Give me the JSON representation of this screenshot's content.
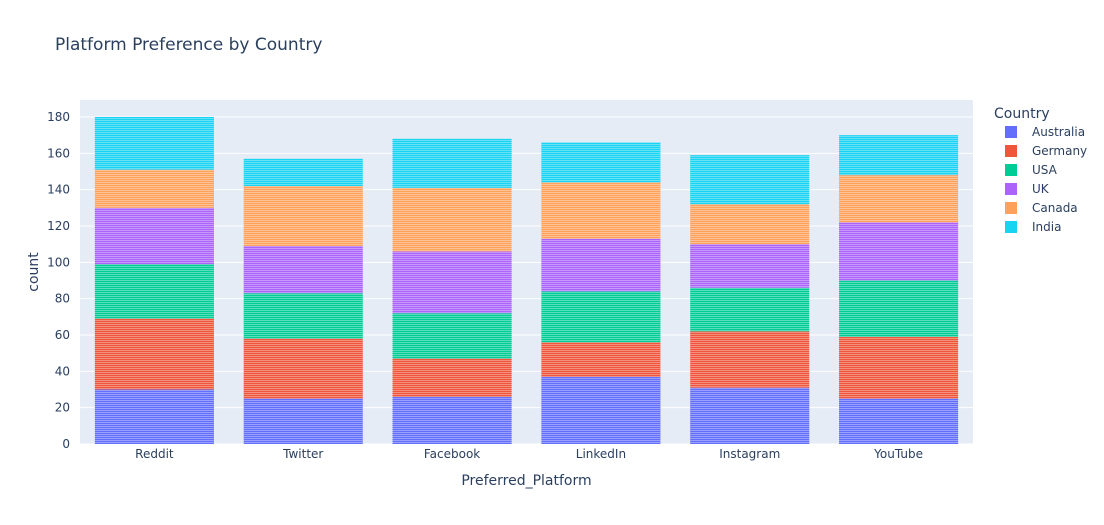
{
  "chart_data": {
    "type": "bar",
    "barmode": "stack",
    "title": "Platform Preference by Country",
    "xlabel": "Preferred_Platform",
    "ylabel": "count",
    "ylim": [
      0,
      190
    ],
    "yticks": [
      0,
      20,
      40,
      60,
      80,
      100,
      120,
      140,
      160,
      180
    ],
    "grid": true,
    "legend_position": "right",
    "legend_title": "Country",
    "categories": [
      "Reddit",
      "Twitter",
      "Facebook",
      "LinkedIn",
      "Instagram",
      "YouTube"
    ],
    "series": [
      {
        "name": "Australia",
        "color": "#636efa",
        "values": [
          30,
          25,
          26,
          37,
          31,
          25
        ]
      },
      {
        "name": "Germany",
        "color": "#ef553b",
        "values": [
          39,
          33,
          21,
          19,
          31,
          34
        ]
      },
      {
        "name": "USA",
        "color": "#00cc96",
        "values": [
          30,
          25,
          25,
          28,
          24,
          31
        ]
      },
      {
        "name": "UK",
        "color": "#ab63fa",
        "values": [
          31,
          26,
          34,
          29,
          24,
          32
        ]
      },
      {
        "name": "Canada",
        "color": "#ffa15a",
        "values": [
          21,
          33,
          35,
          31,
          22,
          26
        ]
      },
      {
        "name": "India",
        "color": "#19d3f3",
        "values": [
          29,
          15,
          27,
          22,
          27,
          22
        ]
      }
    ]
  }
}
